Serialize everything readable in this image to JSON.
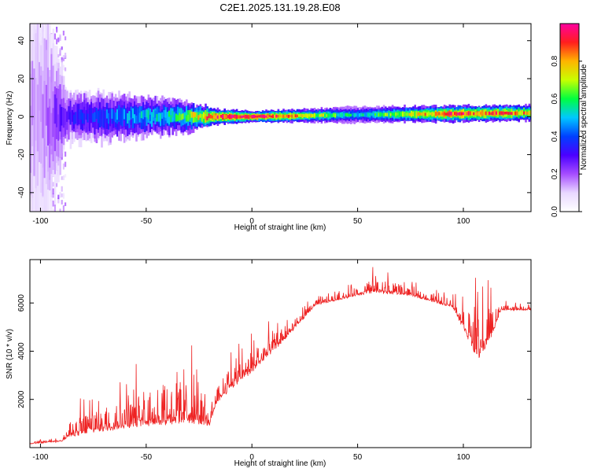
{
  "figure_title": "C2E1.2025.131.19.28.E08",
  "chart_data": [
    {
      "type": "heatmap",
      "title": "",
      "xlabel": "Height of straight line (km)",
      "ylabel": "Frequency (Hz)",
      "xlim": [
        -105,
        132
      ],
      "ylim": [
        -50,
        49
      ],
      "xticks": [
        -100,
        -50,
        0,
        50,
        100
      ],
      "yticks": [
        -40,
        -20,
        0,
        20,
        40
      ],
      "colorbar": {
        "label": "Normalized spectral amplitude",
        "range": [
          0,
          1
        ],
        "ticks": [
          "0.0",
          "0.2",
          "0.4",
          "0.6",
          "0.8"
        ],
        "colormap": [
          "#ffffff",
          "#e9d8ff",
          "#a64dff",
          "#4b00ff",
          "#0040ff",
          "#00c8ff",
          "#00ff40",
          "#c8ff00",
          "#ffb400",
          "#ff1e1e",
          "#ff00a0"
        ]
      },
      "ridge": {
        "description_points": [
          {
            "x": -100,
            "freq": 0,
            "amplitude": 0.15,
            "spread_hz": 50
          },
          {
            "x": -88,
            "freq": 0,
            "amplitude": 0.3,
            "spread_hz": 10
          },
          {
            "x": -60,
            "freq": 0,
            "amplitude": 0.45,
            "spread_hz": 8
          },
          {
            "x": -35,
            "freq": 0,
            "amplitude": 0.55,
            "spread_hz": 6
          },
          {
            "x": -18,
            "freq": 0,
            "amplitude": 0.9,
            "spread_hz": 3
          },
          {
            "x": 0,
            "freq": 0,
            "amplitude": 1.0,
            "spread_hz": 2
          },
          {
            "x": 50,
            "freq": 1,
            "amplitude": 0.5,
            "spread_hz": 3
          },
          {
            "x": 95,
            "freq": 1.5,
            "amplitude": 0.9,
            "spread_hz": 3
          },
          {
            "x": 132,
            "freq": 2,
            "amplitude": 0.8,
            "spread_hz": 3
          }
        ]
      }
    },
    {
      "type": "line",
      "title": "",
      "xlabel": "Height of straight line (km)",
      "ylabel": "SNR (10 * v/v)",
      "xlim": [
        -105,
        132
      ],
      "ylim": [
        0,
        7800
      ],
      "xticks": [
        -100,
        -50,
        0,
        50,
        100
      ],
      "yticks": [
        2000,
        4000,
        6000
      ],
      "series": [
        {
          "color": "#ee2222",
          "envelope": [
            {
              "x": -105,
              "base": 150,
              "peak": 300
            },
            {
              "x": -90,
              "base": 250,
              "peak": 600
            },
            {
              "x": -87,
              "base": 400,
              "peak": 1600
            },
            {
              "x": -75,
              "base": 600,
              "peak": 2600
            },
            {
              "x": -60,
              "base": 800,
              "peak": 3200
            },
            {
              "x": -45,
              "base": 900,
              "peak": 4200
            },
            {
              "x": -30,
              "base": 1000,
              "peak": 4700
            },
            {
              "x": -20,
              "base": 900,
              "peak": 2000
            },
            {
              "x": -17,
              "base": 1800,
              "peak": 3200
            },
            {
              "x": -10,
              "base": 2400,
              "peak": 4300
            },
            {
              "x": 0,
              "base": 3100,
              "peak": 5100
            },
            {
              "x": 15,
              "base": 4400,
              "peak": 5400
            },
            {
              "x": 30,
              "base": 5900,
              "peak": 6300
            },
            {
              "x": 50,
              "base": 6300,
              "peak": 6900
            },
            {
              "x": 58,
              "base": 6400,
              "peak": 7700
            },
            {
              "x": 75,
              "base": 6300,
              "peak": 6900
            },
            {
              "x": 95,
              "base": 5800,
              "peak": 6500
            },
            {
              "x": 107,
              "base": 3600,
              "peak": 7200
            },
            {
              "x": 112,
              "base": 4300,
              "peak": 7100
            },
            {
              "x": 118,
              "base": 5700,
              "peak": 6100
            },
            {
              "x": 132,
              "base": 5700,
              "peak": 6000
            }
          ]
        }
      ]
    }
  ]
}
